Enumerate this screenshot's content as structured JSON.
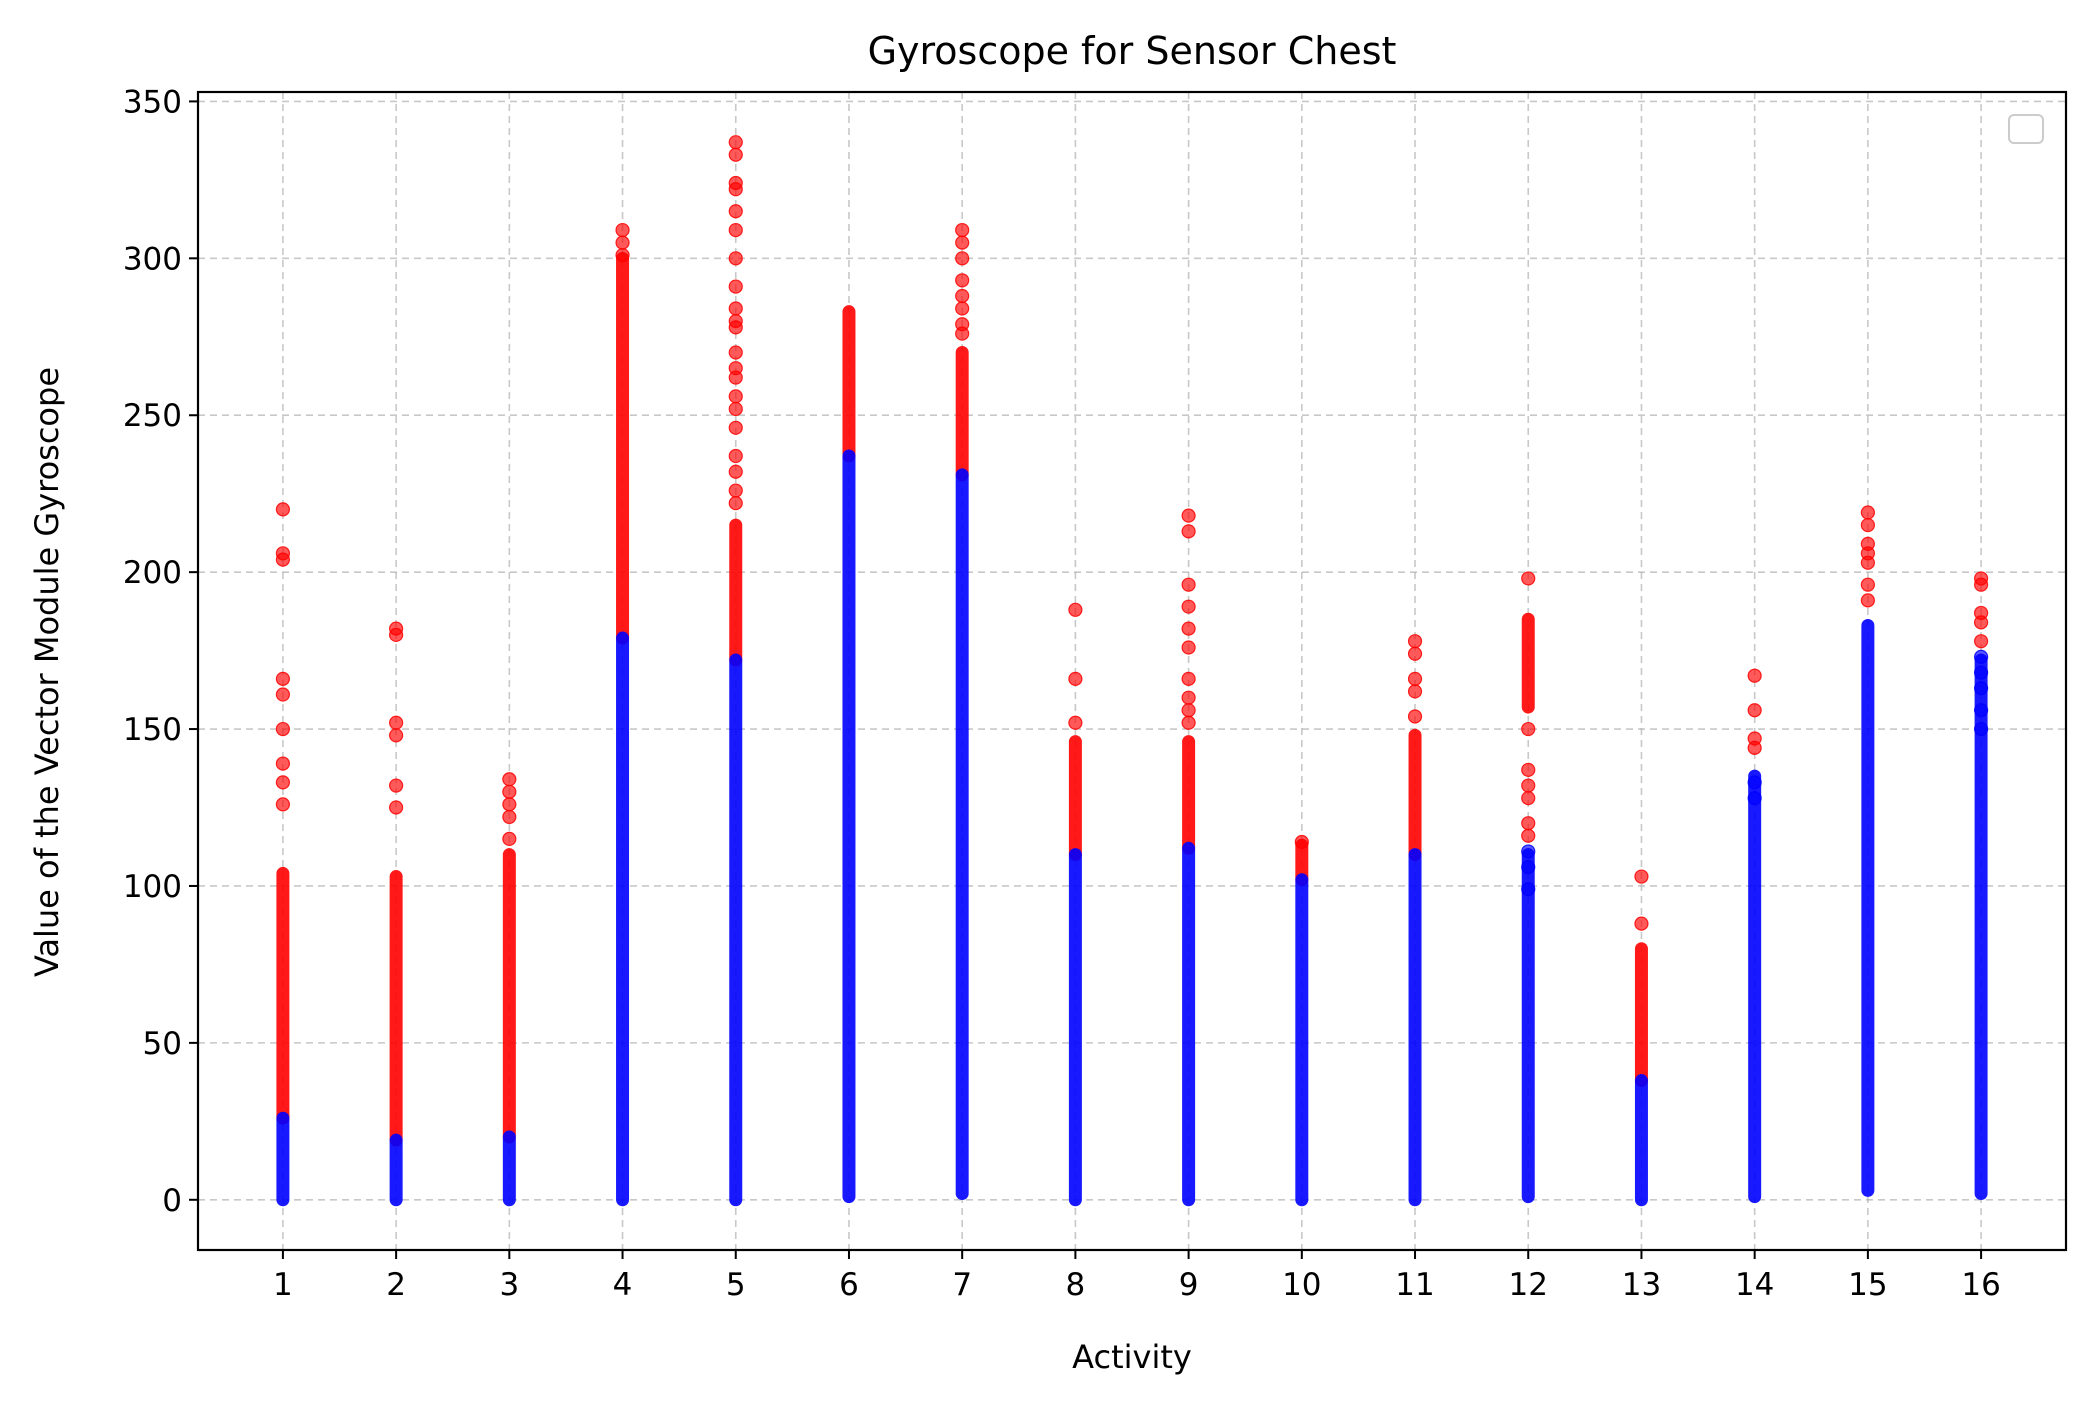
{
  "chart_data": {
    "type": "scatter",
    "title": "Gyroscope for Sensor Chest",
    "xlabel": "Activity",
    "ylabel": "Value of the Vector Module Gyroscope",
    "x_ticks": [
      "1",
      "2",
      "3",
      "4",
      "5",
      "6",
      "7",
      "8",
      "9",
      "10",
      "11",
      "12",
      "13",
      "14",
      "15",
      "16"
    ],
    "y_ticks": [
      "0",
      "50",
      "100",
      "150",
      "200",
      "250",
      "300",
      "350"
    ],
    "xlim": [
      0.25,
      16.75
    ],
    "ylim": [
      -16,
      353
    ],
    "grid": true,
    "legend": "top-right",
    "colors": {
      "normal": "#0000ff",
      "outlier": "#ff0000"
    },
    "normal_ranges": [
      [
        1,
        0,
        26
      ],
      [
        2,
        0,
        19
      ],
      [
        3,
        0,
        20
      ],
      [
        4,
        0,
        179
      ],
      [
        5,
        0,
        172
      ],
      [
        6,
        1,
        237
      ],
      [
        7,
        2,
        231
      ],
      [
        8,
        0,
        110
      ],
      [
        9,
        0,
        112
      ],
      [
        10,
        0,
        102
      ],
      [
        11,
        0,
        110
      ],
      [
        12,
        1,
        110
      ],
      [
        13,
        0,
        38
      ],
      [
        14,
        1,
        135
      ],
      [
        15,
        3,
        183
      ],
      [
        16,
        2,
        172
      ]
    ],
    "outlier_ranges": [
      [
        1,
        26,
        104
      ],
      [
        2,
        19,
        103
      ],
      [
        3,
        20,
        110
      ],
      [
        4,
        179,
        300
      ],
      [
        5,
        172,
        215
      ],
      [
        6,
        237,
        283
      ],
      [
        7,
        231,
        270
      ],
      [
        8,
        110,
        146
      ],
      [
        9,
        112,
        146
      ],
      [
        10,
        102,
        113
      ],
      [
        11,
        110,
        148
      ],
      [
        12,
        157,
        185
      ],
      [
        13,
        38,
        80
      ]
    ],
    "outlier_points": [
      [
        1,
        220
      ],
      [
        1,
        206
      ],
      [
        1,
        204
      ],
      [
        1,
        166
      ],
      [
        1,
        161
      ],
      [
        1,
        150
      ],
      [
        1,
        139
      ],
      [
        1,
        133
      ],
      [
        1,
        126
      ],
      [
        2,
        182
      ],
      [
        2,
        180
      ],
      [
        2,
        152
      ],
      [
        2,
        148
      ],
      [
        2,
        132
      ],
      [
        2,
        125
      ],
      [
        3,
        134
      ],
      [
        3,
        130
      ],
      [
        3,
        126
      ],
      [
        3,
        122
      ],
      [
        3,
        115
      ],
      [
        4,
        309
      ],
      [
        4,
        305
      ],
      [
        4,
        301
      ],
      [
        5,
        337
      ],
      [
        5,
        333
      ],
      [
        5,
        324
      ],
      [
        5,
        322
      ],
      [
        5,
        315
      ],
      [
        5,
        309
      ],
      [
        5,
        300
      ],
      [
        5,
        291
      ],
      [
        5,
        284
      ],
      [
        5,
        280
      ],
      [
        5,
        278
      ],
      [
        5,
        270
      ],
      [
        5,
        265
      ],
      [
        5,
        262
      ],
      [
        5,
        256
      ],
      [
        5,
        252
      ],
      [
        5,
        246
      ],
      [
        5,
        237
      ],
      [
        5,
        232
      ],
      [
        5,
        226
      ],
      [
        5,
        222
      ],
      [
        7,
        309
      ],
      [
        7,
        305
      ],
      [
        7,
        300
      ],
      [
        7,
        293
      ],
      [
        7,
        288
      ],
      [
        7,
        284
      ],
      [
        7,
        279
      ],
      [
        7,
        276
      ],
      [
        8,
        188
      ],
      [
        8,
        166
      ],
      [
        8,
        152
      ],
      [
        9,
        218
      ],
      [
        9,
        213
      ],
      [
        9,
        196
      ],
      [
        9,
        189
      ],
      [
        9,
        182
      ],
      [
        9,
        176
      ],
      [
        9,
        166
      ],
      [
        9,
        160
      ],
      [
        9,
        156
      ],
      [
        9,
        152
      ],
      [
        10,
        114
      ],
      [
        11,
        178
      ],
      [
        11,
        174
      ],
      [
        11,
        166
      ],
      [
        11,
        162
      ],
      [
        11,
        154
      ],
      [
        12,
        198
      ],
      [
        12,
        150
      ],
      [
        12,
        137
      ],
      [
        12,
        132
      ],
      [
        12,
        128
      ],
      [
        12,
        120
      ],
      [
        12,
        116
      ],
      [
        13,
        103
      ],
      [
        13,
        88
      ],
      [
        14,
        167
      ],
      [
        14,
        156
      ],
      [
        14,
        147
      ],
      [
        14,
        144
      ],
      [
        15,
        219
      ],
      [
        15,
        215
      ],
      [
        15,
        209
      ],
      [
        15,
        206
      ],
      [
        15,
        203
      ],
      [
        15,
        196
      ],
      [
        15,
        191
      ],
      [
        16,
        198
      ],
      [
        16,
        196
      ],
      [
        16,
        187
      ],
      [
        16,
        184
      ],
      [
        16,
        178
      ]
    ],
    "normal_points": [
      [
        12,
        111
      ],
      [
        12,
        106
      ],
      [
        12,
        99
      ],
      [
        14,
        133
      ],
      [
        14,
        128
      ],
      [
        16,
        173
      ],
      [
        16,
        168
      ],
      [
        16,
        163
      ],
      [
        16,
        156
      ],
      [
        16,
        150
      ]
    ]
  }
}
